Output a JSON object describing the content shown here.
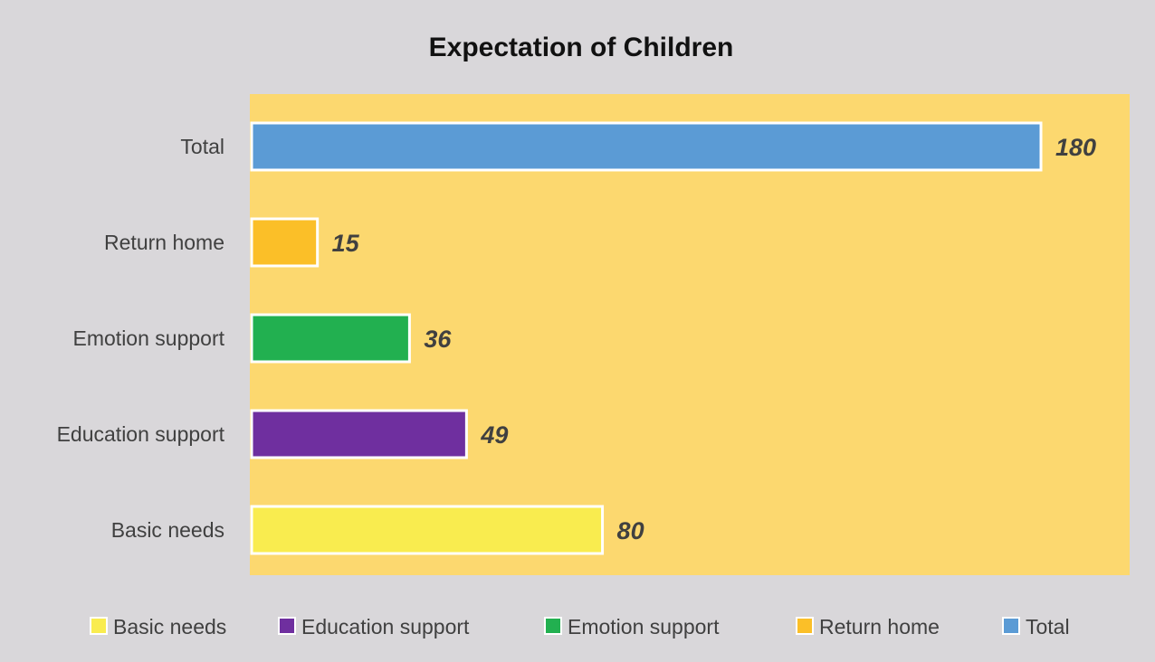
{
  "chart_data": {
    "type": "bar",
    "orientation": "horizontal",
    "title": "Expectation of Children",
    "xlabel": "",
    "ylabel": "",
    "categories": [
      "Basic needs",
      "Education support",
      "Emotion support",
      "Return home",
      "Total"
    ],
    "values": [
      80,
      49,
      36,
      15,
      180
    ],
    "colors": [
      "#f9ec4f",
      "#6f2f9f",
      "#22b050",
      "#fbbf28",
      "#5b9bd5"
    ],
    "xlim": [
      0,
      200
    ],
    "grid": false,
    "legend": {
      "position": "bottom",
      "entries": [
        "Basic needs",
        "Education support",
        "Emotion support",
        "Return home",
        "Total"
      ]
    },
    "plot_background": "#fcd86f",
    "chart_background": "#d9d7da",
    "bar_outline": "#ffffff"
  }
}
